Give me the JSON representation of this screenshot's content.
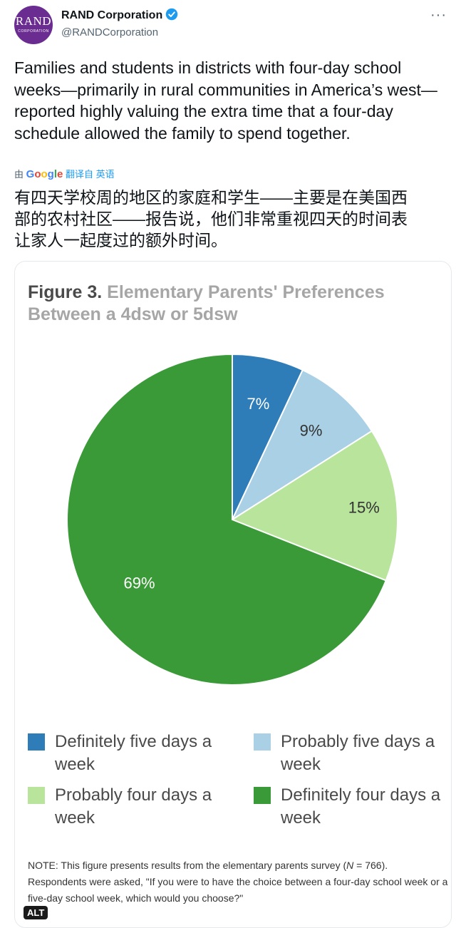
{
  "header": {
    "avatar_line1": "RAND",
    "avatar_line2": "CORPORATION",
    "display_name": "RAND Corporation",
    "handle": "@RANDCorporation",
    "more_label": "···"
  },
  "tweet": {
    "text": "Families and students in districts with four-day school weeks—primarily in rural communities in America’s west—reported highly valuing the extra time that a four-day schedule allowed the family to spend together.",
    "translate_prefix": "由",
    "translate_brand": "Google",
    "translate_link": "翻译自 英语",
    "translated_text": "有四天学校周的地区的家庭和学生——主要是在美国西\n部的农村社区——报告说，他们非常重视四天的时间表\n让家人一起度过的额外时间。"
  },
  "figure": {
    "title_label": "Figure 3.",
    "title_text": "Elementary Parents' Preferences Between a 4dsw or 5dsw",
    "note_prefix": "NOTE: This figure presents results from the elementary parents survey (",
    "note_n": "N",
    "note_suffix": " = 766). Respondents were asked, \"If you were to have the choice between a four-day school week or a five-day school week, which would you choose?\"",
    "alt_badge": "ALT"
  },
  "chart_data": {
    "type": "pie",
    "title": "Elementary Parents' Preferences Between a 4dsw or 5dsw",
    "slices": [
      {
        "label": "Definitely five days a week",
        "value": 7,
        "display": "7%",
        "color": "#2e7cb8"
      },
      {
        "label": "Probably five days a week",
        "value": 9,
        "display": "9%",
        "color": "#a9d0e5"
      },
      {
        "label": "Probably four days a week",
        "value": 15,
        "display": "15%",
        "color": "#b8e49c"
      },
      {
        "label": "Definitely four days a week",
        "value": 69,
        "display": "69%",
        "color": "#3a9a38"
      }
    ],
    "legend_placement": "bottom"
  },
  "colors": {
    "verified_badge": "#1d9bf0",
    "avatar_bg": "#6a2c91"
  }
}
